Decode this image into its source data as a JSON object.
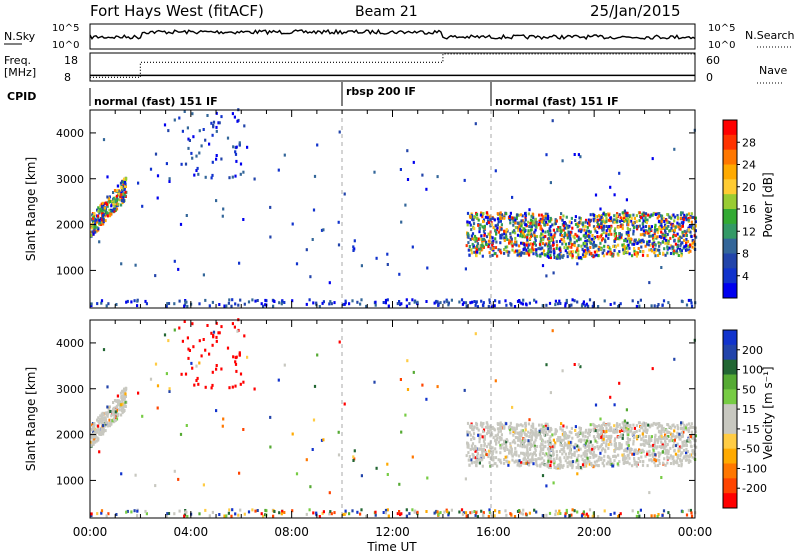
{
  "header": {
    "station": "Fort Hays West (fitACF)",
    "beam": "Beam 21",
    "date": "25/Jan/2015"
  },
  "aux_panels": {
    "nsky_label": "N.Sky",
    "nsearch_label": "N.Search",
    "nsky_ticks": [
      "10^5",
      "10^0"
    ],
    "freq_label": "Freq.",
    "freq_unit": "[MHz]",
    "freq_ticks": [
      "18",
      "8"
    ],
    "nave_label": "Nave",
    "nave_ticks": [
      "60",
      "0"
    ],
    "cpid_label": "CPID",
    "cpid_segments": [
      "normal (fast) 151 IF",
      "rbsp 200 IF",
      "normal (fast) 151 IF"
    ]
  },
  "power_panel": {
    "ylabel": "Slant Range [km]",
    "cbar_label": "Power [dB]",
    "cbar_ticks": [
      "28",
      "24",
      "20",
      "16",
      "12",
      "8",
      "4"
    ],
    "cbar_colors": [
      "#ff0000",
      "#ff3300",
      "#ff7700",
      "#ffaa00",
      "#ffcc33",
      "#99cc33",
      "#33aa33",
      "#339966",
      "#336699",
      "#2244aa",
      "#1133cc",
      "#0000ee"
    ]
  },
  "velocity_panel": {
    "ylabel": "Slant Range [km]",
    "cbar_label": "Velocity [m s⁻¹]",
    "cbar_ticks": [
      "200",
      "100",
      "50",
      "15",
      "-15",
      "-50",
      "-100",
      "-200"
    ],
    "cbar_colors": [
      "#1133cc",
      "#2244aa",
      "#226633",
      "#55aa33",
      "#77cc44",
      "#c8c8c0",
      "#c8c8c0",
      "#ffcc44",
      "#ffaa00",
      "#ff7700",
      "#ff4400",
      "#ff0000"
    ]
  },
  "xaxis": {
    "label": "Time UT",
    "ticks": [
      "00:00",
      "04:00",
      "08:00",
      "12:00",
      "16:00",
      "20:00",
      "00:00"
    ]
  },
  "chart_data": [
    {
      "type": "heatmap",
      "title": "Power",
      "ylabel": "Slant Range [km]",
      "xlabel": "Time UT",
      "ylim": [
        180,
        4500
      ],
      "y_ticks": [
        1000,
        2000,
        3000,
        4000
      ],
      "x_ticks": [
        "00:00",
        "04:00",
        "08:00",
        "12:00",
        "16:00",
        "20:00",
        "00:00"
      ],
      "colorbar": {
        "label": "Power [dB]",
        "ticks": [
          4,
          8,
          12,
          16,
          20,
          24,
          28
        ]
      }
    },
    {
      "type": "heatmap",
      "title": "Velocity",
      "ylabel": "Slant Range [km]",
      "xlabel": "Time UT",
      "ylim": [
        180,
        4500
      ],
      "y_ticks": [
        1000,
        2000,
        3000,
        4000
      ],
      "x_ticks": [
        "00:00",
        "04:00",
        "08:00",
        "12:00",
        "16:00",
        "20:00",
        "00:00"
      ],
      "colorbar": {
        "label": "Velocity [m s⁻¹]",
        "ticks": [
          200,
          100,
          50,
          15,
          -15,
          -50,
          -100,
          -200
        ]
      }
    },
    {
      "type": "line",
      "title": "Freq. [MHz]",
      "x": [
        "00:00",
        "02:00",
        "02:00",
        "14:00",
        "14:00",
        "24:00"
      ],
      "y": [
        10,
        10,
        10,
        10,
        10,
        10
      ],
      "ylim": [
        8,
        18
      ]
    },
    {
      "type": "line",
      "title": "Nave",
      "x": [
        "00:00",
        "02:00",
        "02:00",
        "14:00",
        "14:00",
        "24:00"
      ],
      "y": [
        8,
        8,
        40,
        40,
        58,
        58
      ],
      "ylim": [
        0,
        60
      ]
    }
  ]
}
